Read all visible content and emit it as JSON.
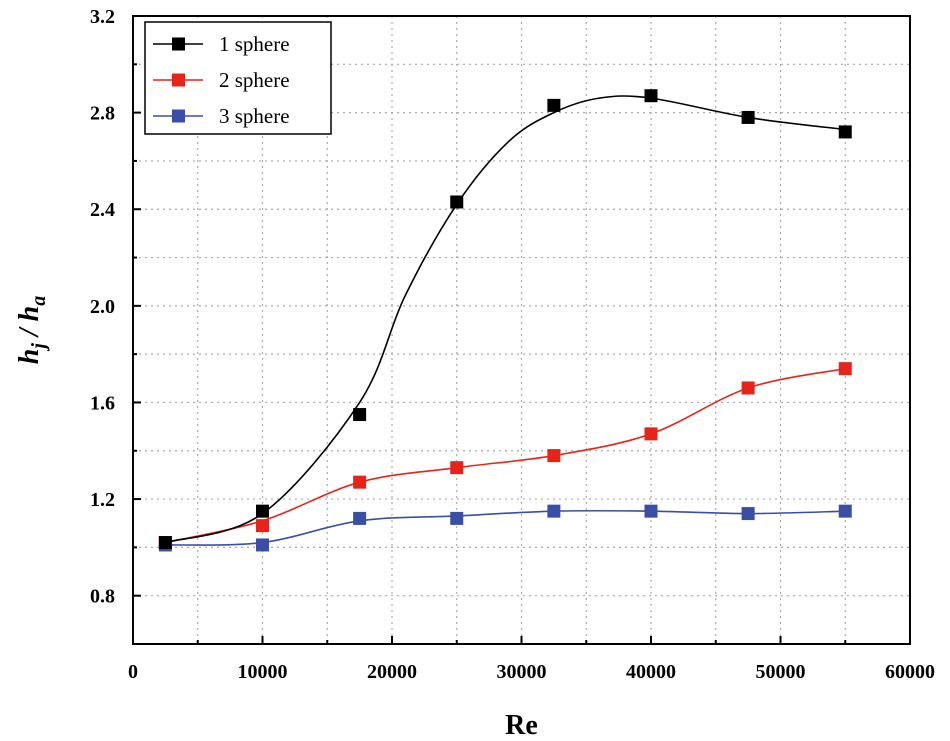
{
  "chart_data": {
    "type": "line",
    "title": "",
    "xlabel": "Re",
    "ylabel": {
      "base1": "h",
      "sub1": "j",
      "sep": " / ",
      "base2": "h",
      "sub2": "a"
    },
    "xlim": [
      0,
      60000
    ],
    "ylim": [
      0.6,
      3.2
    ],
    "xticks": [
      0,
      10000,
      20000,
      30000,
      40000,
      50000,
      60000
    ],
    "xtick_labels": [
      "0",
      "10000",
      "20000",
      "30000",
      "40000",
      "50000",
      "60000"
    ],
    "yticks": [
      0.8,
      1.2,
      1.6,
      2.0,
      2.4,
      2.8,
      3.2
    ],
    "ytick_labels": [
      "0.8",
      "1.2",
      "1.6",
      "2.0",
      "2.4",
      "2.8",
      "3.2"
    ],
    "grid": true,
    "legend_position": "top-left",
    "x": [
      2500,
      10000,
      17500,
      25000,
      32500,
      40000,
      47500,
      55000
    ],
    "series": [
      {
        "name": "1 sphere",
        "color": "#000000",
        "values": [
          1.02,
          1.15,
          1.55,
          2.43,
          2.83,
          2.87,
          2.78,
          2.72
        ],
        "curve_x": [
          2500,
          10000,
          17500,
          21000,
          25000,
          29000,
          32500,
          36000,
          40000,
          47500,
          55000
        ],
        "curve_y": [
          1.02,
          1.14,
          1.6,
          2.04,
          2.42,
          2.68,
          2.8,
          2.86,
          2.86,
          2.78,
          2.73
        ]
      },
      {
        "name": "2 sphere",
        "color": "#e8231a",
        "values": [
          1.02,
          1.09,
          1.27,
          1.33,
          1.38,
          1.47,
          1.66,
          1.74
        ],
        "curve_x": [
          2500,
          10000,
          17500,
          25000,
          32500,
          40000,
          47500,
          55000
        ],
        "curve_y": [
          1.02,
          1.11,
          1.27,
          1.33,
          1.38,
          1.47,
          1.66,
          1.74
        ]
      },
      {
        "name": "3 sphere",
        "color": "#3b4ea5",
        "values": [
          1.01,
          1.01,
          1.12,
          1.12,
          1.15,
          1.15,
          1.14,
          1.15
        ],
        "curve_x": [
          2500,
          10000,
          17500,
          25000,
          32500,
          40000,
          47500,
          55000
        ],
        "curve_y": [
          1.01,
          1.02,
          1.11,
          1.13,
          1.15,
          1.15,
          1.14,
          1.15
        ]
      }
    ]
  }
}
